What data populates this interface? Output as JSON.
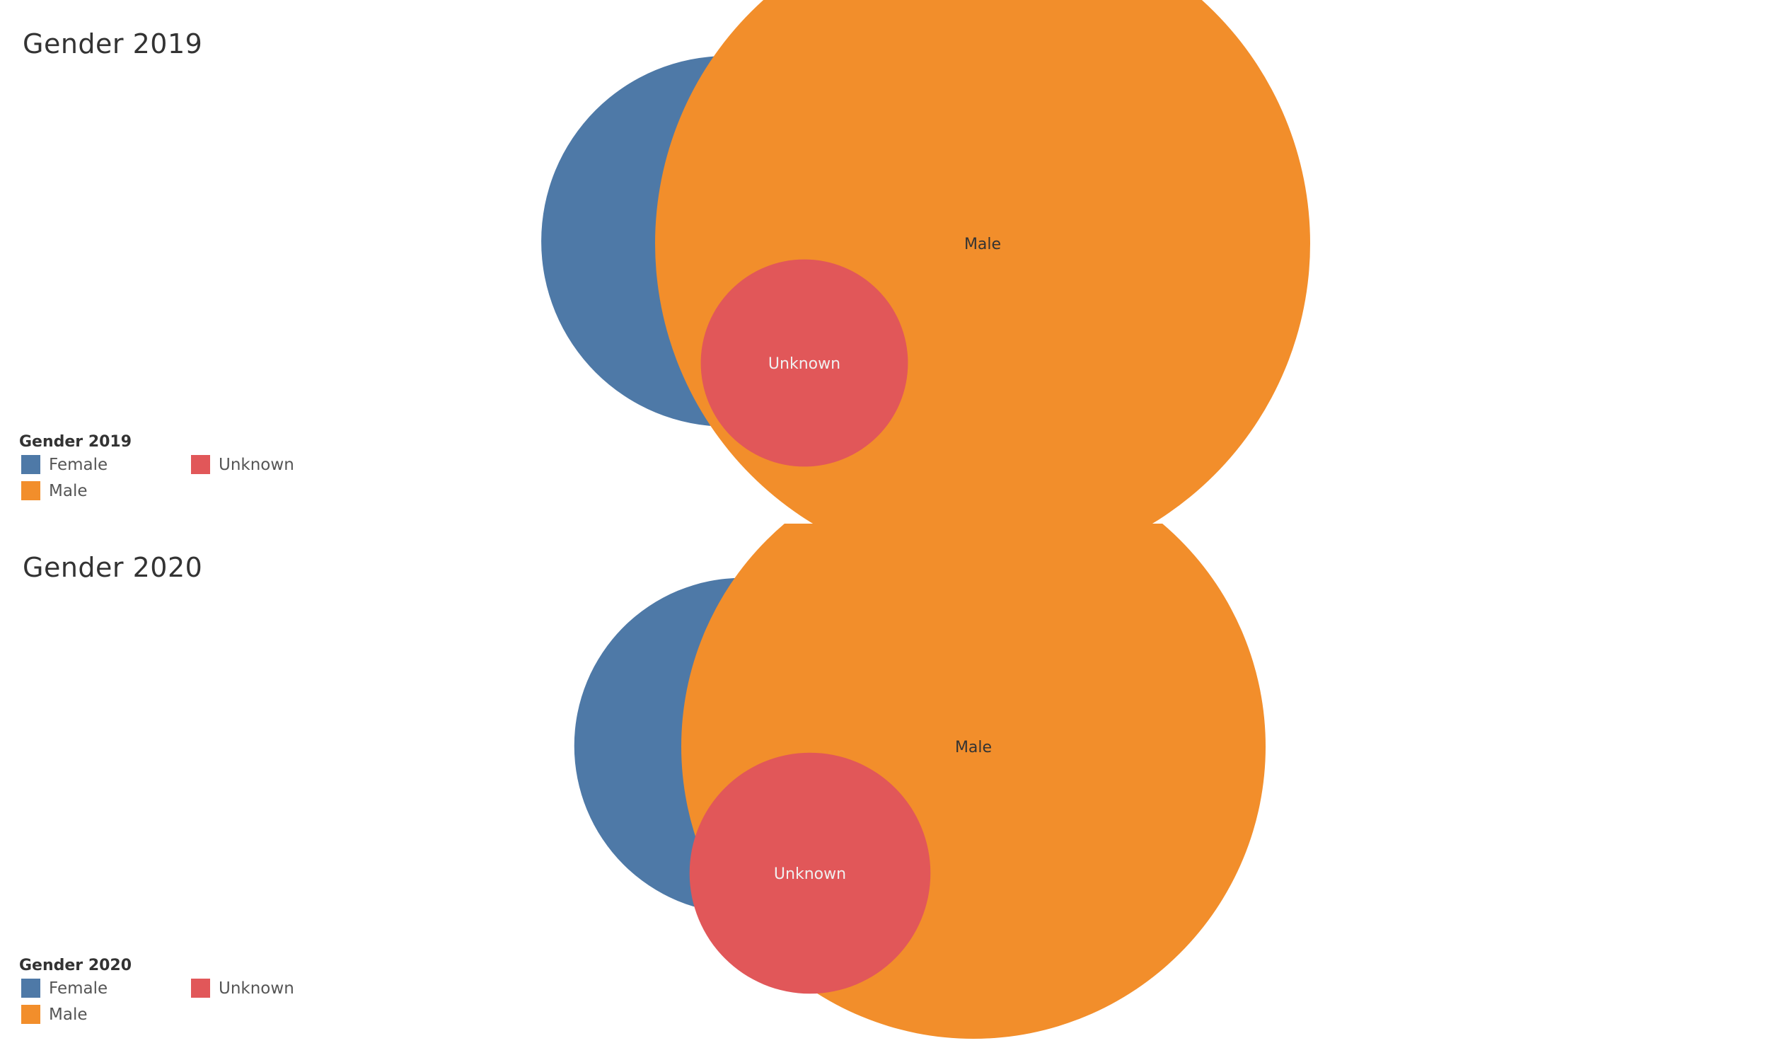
{
  "colors": {
    "Female": "#4e79a7",
    "Male": "#f28e2b",
    "Unknown": "#e15759"
  },
  "chart_data": [
    {
      "type": "bubble",
      "title": "Gender 2019",
      "legend": {
        "title": "Gender 2019",
        "placement": "bottom-left",
        "items": [
          "Female",
          "Unknown",
          "Male"
        ]
      },
      "bubbles": [
        {
          "label": "Female",
          "relative_size": 0.32
        },
        {
          "label": "Male",
          "relative_size": 1.0
        },
        {
          "label": "Unknown",
          "relative_size": 0.1
        }
      ]
    },
    {
      "type": "bubble",
      "title": "Gender 2020",
      "legend": {
        "title": "Gender 2020",
        "placement": "bottom-left",
        "items": [
          "Female",
          "Unknown",
          "Male"
        ]
      },
      "bubbles": [
        {
          "label": "Female",
          "relative_size": 0.33
        },
        {
          "label": "Male",
          "relative_size": 1.0
        },
        {
          "label": "Unknown",
          "relative_size": 0.17
        }
      ]
    }
  ]
}
